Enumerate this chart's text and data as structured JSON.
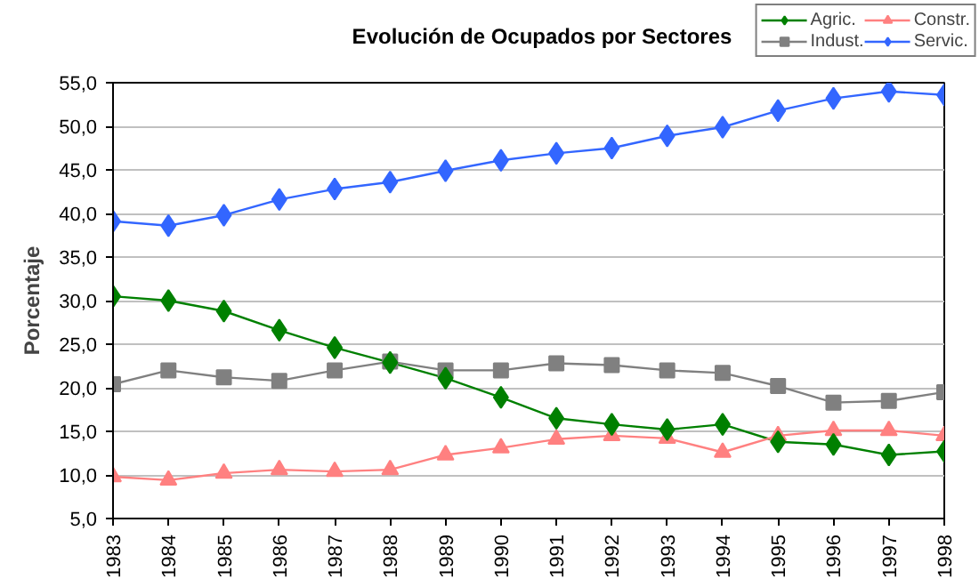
{
  "chart_data": {
    "type": "line",
    "title": "Evolución de Ocupados por Sectores",
    "ylabel": "Porcentaje",
    "categories": [
      "1983",
      "1984",
      "1985",
      "1986",
      "1987",
      "1988",
      "1989",
      "1990",
      "1991",
      "1992",
      "1993",
      "1994",
      "1995",
      "1996",
      "1997",
      "1998"
    ],
    "series": [
      {
        "name": "Agric.",
        "color": "#008000",
        "marker": "diamond",
        "values": [
          30.5,
          30.0,
          28.8,
          26.6,
          24.6,
          22.9,
          21.1,
          18.9,
          16.5,
          15.8,
          15.2,
          15.8,
          13.8,
          13.5,
          12.3,
          12.7
        ]
      },
      {
        "name": "Indust.",
        "color": "#808080",
        "marker": "square",
        "values": [
          20.4,
          22.0,
          21.2,
          20.8,
          22.0,
          23.0,
          22.0,
          22.0,
          22.8,
          22.6,
          22.0,
          21.7,
          20.2,
          18.3,
          18.5,
          19.5
        ]
      },
      {
        "name": "Constr.",
        "color": "#ff8080",
        "marker": "triangle",
        "values": [
          9.8,
          9.4,
          10.2,
          10.6,
          10.4,
          10.6,
          12.3,
          13.1,
          14.1,
          14.5,
          14.2,
          12.6,
          14.5,
          15.1,
          15.1,
          14.5
        ]
      },
      {
        "name": "Servic.",
        "color": "#3366ff",
        "marker": "diamond",
        "values": [
          39.1,
          38.6,
          39.8,
          41.6,
          42.8,
          43.6,
          44.9,
          46.1,
          46.9,
          47.5,
          48.9,
          49.9,
          51.8,
          53.2,
          54.0,
          53.6
        ]
      }
    ],
    "ylim": [
      5,
      55
    ],
    "yticks": [
      {
        "value": 5,
        "label": "5,0"
      },
      {
        "value": 10,
        "label": "10,0"
      },
      {
        "value": 15,
        "label": "15,0"
      },
      {
        "value": 20,
        "label": "20,0"
      },
      {
        "value": 25,
        "label": "25,0"
      },
      {
        "value": 30,
        "label": "30,0"
      },
      {
        "value": 35,
        "label": "35,0"
      },
      {
        "value": 40,
        "label": "40,0"
      },
      {
        "value": 45,
        "label": "45,0"
      },
      {
        "value": 50,
        "label": "50,0"
      },
      {
        "value": 55,
        "label": "55,0"
      }
    ],
    "grid": "y",
    "legend": "top right",
    "line_style": "solid"
  }
}
